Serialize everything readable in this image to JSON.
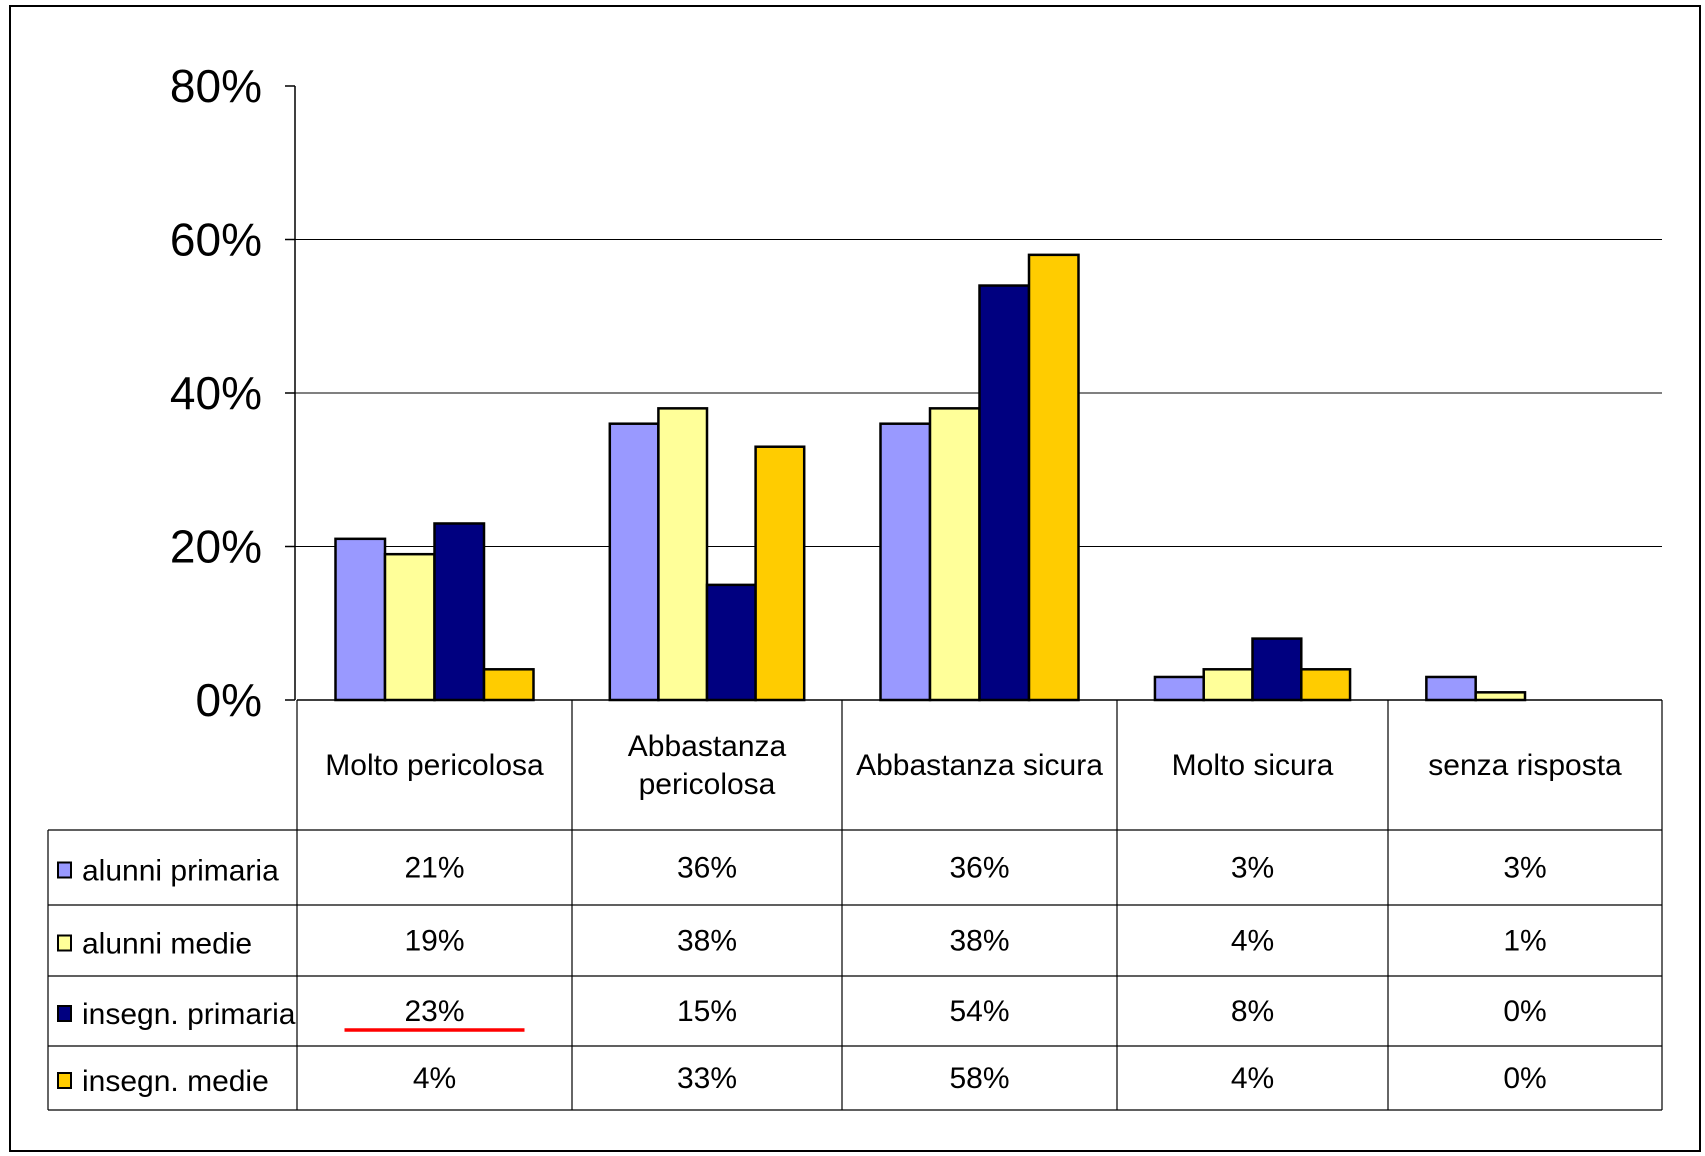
{
  "chart_data": {
    "type": "bar",
    "categories": [
      [
        "Molto pericolosa"
      ],
      [
        "Abbastanza",
        "pericolosa"
      ],
      [
        "Abbastanza sicura"
      ],
      [
        "Molto sicura"
      ],
      [
        "senza risposta"
      ]
    ],
    "series": [
      {
        "name": "alunni primaria",
        "color": "#9999ff",
        "values": [
          21,
          36,
          36,
          3,
          3
        ]
      },
      {
        "name": "alunni medie",
        "color": "#ffff99",
        "values": [
          19,
          38,
          38,
          4,
          1
        ]
      },
      {
        "name": "insegn. primaria",
        "color": "#000080",
        "values": [
          23,
          15,
          54,
          8,
          0
        ]
      },
      {
        "name": "insegn. medie",
        "color": "#ffcc00",
        "values": [
          4,
          33,
          58,
          4,
          0
        ]
      }
    ],
    "ylim": [
      0,
      80
    ],
    "yticks": [
      0,
      20,
      40,
      60,
      80
    ],
    "ytick_suffix": "%",
    "grid": true,
    "legend": "data-table",
    "annotations": [
      {
        "type": "underline",
        "color": "#ff0000",
        "series": "insegn. primaria",
        "category": "Molto pericolosa"
      }
    ]
  }
}
